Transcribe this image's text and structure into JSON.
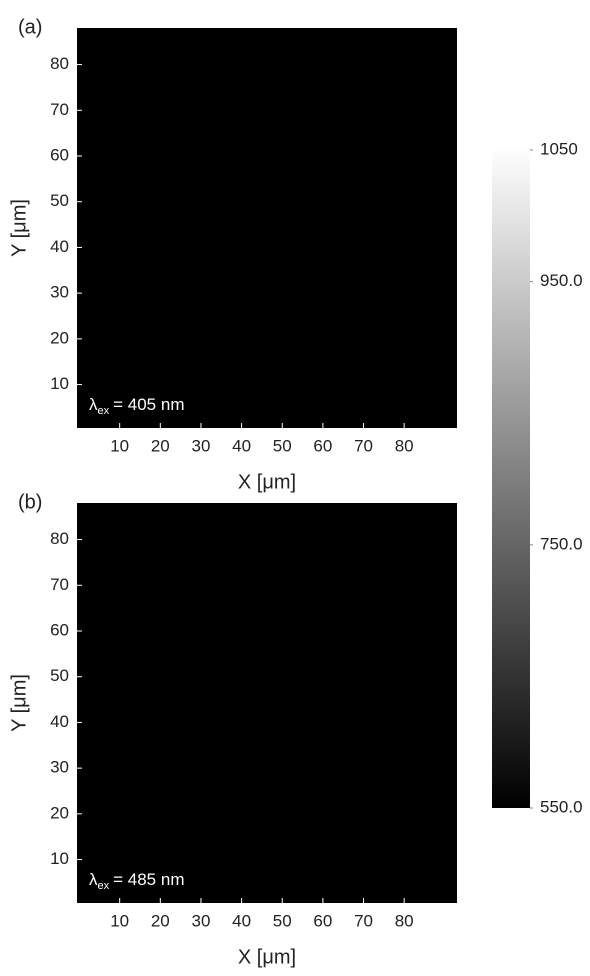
{
  "chart_data": [
    {
      "type": "image",
      "panel_label": "(a)",
      "xlabel": "X [μm]",
      "ylabel": "Y [μm]",
      "annotation": {
        "symbol": "λ",
        "subscript": "ex",
        "text": "= 405 nm"
      },
      "xlim": [
        -0.5,
        93
      ],
      "ylim": [
        0.5,
        88
      ],
      "xticks": [
        10,
        20,
        30,
        40,
        50,
        60,
        70,
        80
      ],
      "yticks": [
        10,
        20,
        30,
        40,
        50,
        60,
        70,
        80
      ]
    },
    {
      "type": "image",
      "panel_label": "(b)",
      "xlabel": "X [μm]",
      "ylabel": "Y [μm]",
      "annotation": {
        "symbol": "λ",
        "subscript": "ex",
        "text": "= 485 nm"
      },
      "xlim": [
        -0.5,
        93
      ],
      "ylim": [
        0.5,
        88
      ],
      "xticks": [
        10,
        20,
        30,
        40,
        50,
        60,
        70,
        80
      ],
      "yticks": [
        10,
        20,
        30,
        40,
        50,
        60,
        70,
        80
      ]
    },
    {
      "type": "colorbar",
      "clim": [
        550,
        1050
      ],
      "colors": [
        "#000000",
        "#ffffff"
      ],
      "ticks": [
        1050,
        {
          "value": 950,
          "label": "950.0"
        },
        {
          "value": 750,
          "label": "750.0"
        },
        {
          "value": 550,
          "label": "550.0"
        }
      ]
    }
  ]
}
